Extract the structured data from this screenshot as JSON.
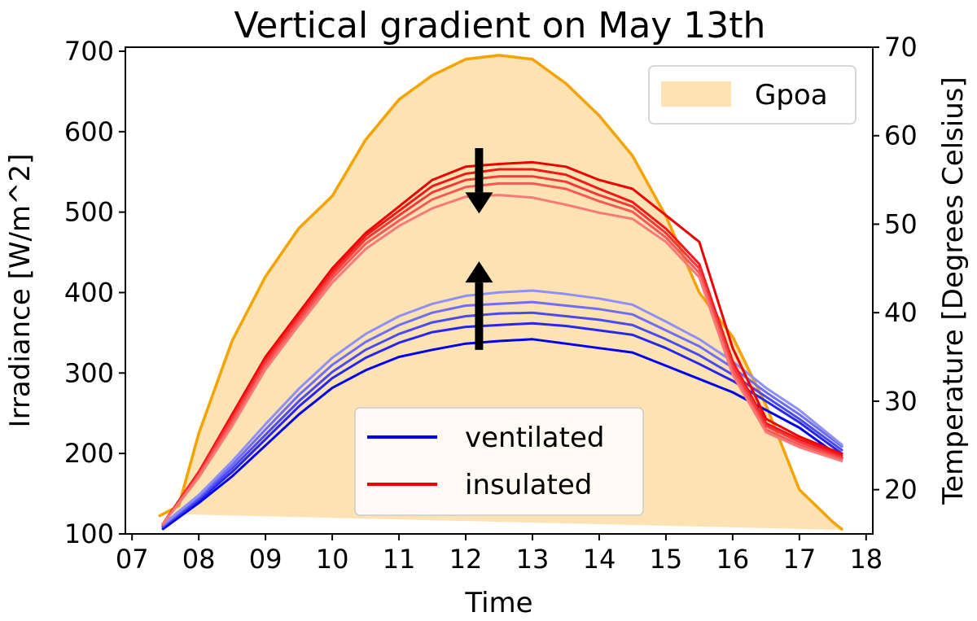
{
  "chart_data": {
    "type": "line",
    "title": "Vertical gradient on May 13th",
    "xlabel": "Time",
    "ylabel_left": "Irradiance [W/m^2]",
    "ylabel_right": "Temperature [Degrees Celsius]",
    "xlim": [
      6.9,
      18.1
    ],
    "ylim_left": [
      100,
      705
    ],
    "ylim_right": [
      15,
      70
    ],
    "x_ticks": [
      7,
      8,
      9,
      10,
      11,
      12,
      13,
      14,
      15,
      16,
      17,
      18
    ],
    "x_tick_labels": [
      "07",
      "08",
      "09",
      "10",
      "11",
      "12",
      "13",
      "14",
      "15",
      "16",
      "17",
      "18"
    ],
    "y_left_ticks": [
      100,
      200,
      300,
      400,
      500,
      600,
      700
    ],
    "y_right_ticks": [
      20,
      30,
      40,
      50,
      60,
      70
    ],
    "grid": false,
    "gpoa_fill": {
      "name": "Gpoa",
      "color": "#fde2b4",
      "x": [
        7.45,
        7.7,
        8.0,
        8.5,
        9.0,
        9.5,
        10.0,
        10.5,
        11.0,
        11.5,
        12.0,
        12.5,
        13.0,
        13.5,
        14.0,
        14.5,
        15.0,
        15.5,
        16.0,
        16.5,
        17.0,
        17.5,
        17.65
      ],
      "y": [
        125,
        135,
        225,
        340,
        420,
        480,
        520,
        590,
        640,
        670,
        690,
        695,
        690,
        660,
        620,
        570,
        495,
        400,
        345,
        260,
        155,
        115,
        105
      ],
      "baseline_y": [
        125,
        105
      ]
    },
    "gpoa_line": {
      "color": "#f5a300",
      "x": [
        7.4,
        7.7,
        8.0,
        8.5,
        9.0,
        9.5,
        10.0,
        10.5,
        11.0,
        11.5,
        12.0,
        12.5,
        13.0,
        13.5,
        14.0,
        14.5,
        15.0,
        15.5,
        16.0,
        16.5,
        17.0,
        17.5,
        17.65
      ],
      "y": [
        122,
        135,
        225,
        340,
        420,
        480,
        520,
        590,
        640,
        670,
        690,
        695,
        690,
        660,
        620,
        570,
        495,
        400,
        345,
        260,
        155,
        115,
        105
      ]
    },
    "temperature_x": [
      7.45,
      8.0,
      8.5,
      9.0,
      9.5,
      10.0,
      10.5,
      11.0,
      11.5,
      12.0,
      12.5,
      13.0,
      13.5,
      14.0,
      14.5,
      15.0,
      15.5,
      16.0,
      16.5,
      17.0,
      17.65
    ],
    "insulated_series": [
      {
        "color": "#ee0000",
        "y": [
          16,
          22,
          28.5,
          35,
          40,
          45,
          49,
          52,
          55,
          56.5,
          56.8,
          57,
          56.5,
          55,
          54,
          51,
          48,
          36,
          28,
          26,
          24
        ]
      },
      {
        "color": "#f21818",
        "y": [
          16,
          22,
          28.3,
          34.7,
          39.7,
          44.7,
          48.7,
          51.5,
          54.3,
          55.7,
          56.2,
          56.2,
          55.6,
          54.0,
          52.5,
          49.5,
          45.5,
          34.5,
          27.5,
          25.7,
          23.8
        ]
      },
      {
        "color": "#f53838",
        "y": [
          16,
          21.8,
          28,
          34.4,
          39.4,
          44.3,
          48.3,
          51.0,
          53.6,
          55.0,
          55.4,
          55.4,
          54.8,
          53.3,
          52.0,
          49.0,
          45.0,
          34.0,
          27.2,
          25.4,
          23.6
        ]
      },
      {
        "color": "#f75858",
        "y": [
          16,
          21.6,
          27.6,
          34.0,
          39.0,
          43.9,
          47.8,
          50.4,
          52.8,
          54.2,
          54.6,
          54.6,
          54.0,
          52.6,
          51.4,
          48.5,
          44.5,
          33.5,
          26.8,
          25.1,
          23.4
        ]
      },
      {
        "color": "#f97878",
        "y": [
          16,
          21.4,
          27.2,
          33.6,
          38.6,
          43.4,
          47.2,
          49.8,
          51.8,
          53.1,
          53.3,
          53.0,
          52.2,
          51.3,
          50.6,
          48.0,
          44.0,
          33.0,
          26.5,
          24.8,
          23.2
        ]
      }
    ],
    "ventilated_series": [
      {
        "color": "#0000ee",
        "y": [
          15.5,
          18.5,
          21.5,
          25.0,
          28.5,
          31.5,
          33.5,
          35.0,
          35.8,
          36.5,
          36.8,
          37.0,
          36.5,
          36.0,
          35.5,
          34.0,
          32.5,
          31.0,
          29.0,
          27.0,
          23.5
        ]
      },
      {
        "color": "#2626f0",
        "y": [
          15.7,
          18.8,
          22.0,
          25.7,
          29.4,
          32.6,
          34.9,
          36.6,
          37.8,
          38.4,
          38.6,
          38.8,
          38.5,
          38.0,
          37.5,
          36.0,
          34.2,
          32.3,
          30.0,
          27.6,
          24.0
        ]
      },
      {
        "color": "#4a4af2",
        "y": [
          15.8,
          19.0,
          22.4,
          26.2,
          30.0,
          33.3,
          35.8,
          37.6,
          38.9,
          39.6,
          39.9,
          40.0,
          39.6,
          39.2,
          38.6,
          37.0,
          35.2,
          33.0,
          30.5,
          28.0,
          24.4
        ]
      },
      {
        "color": "#6d6df5",
        "y": [
          15.9,
          19.2,
          22.8,
          26.8,
          30.7,
          34.1,
          36.7,
          38.6,
          40.0,
          40.8,
          41.0,
          41.2,
          40.8,
          40.4,
          39.8,
          38.0,
          36.2,
          33.8,
          31.0,
          28.5,
          24.8
        ]
      },
      {
        "color": "#8f8ff8",
        "y": [
          16.0,
          19.4,
          23.2,
          27.4,
          31.4,
          34.9,
          37.6,
          39.6,
          41.0,
          41.9,
          42.3,
          42.5,
          42.1,
          41.6,
          40.9,
          39.0,
          37.0,
          34.5,
          31.5,
          29.0,
          25.0
        ]
      }
    ],
    "arrows": [
      {
        "direction": "down",
        "x": 12.2,
        "from_y": 58.6,
        "to_y": 51.2
      },
      {
        "direction": "up",
        "x": 12.2,
        "from_y": 35.8,
        "to_y": 45.8
      }
    ],
    "legends": [
      {
        "placement": "top-right",
        "entries": [
          {
            "label": "Gpoa",
            "kind": "patch",
            "color": "#fde2b4"
          }
        ]
      },
      {
        "placement": "bottom-center",
        "entries": [
          {
            "label": "ventilated",
            "kind": "line",
            "color": "#0000ee"
          },
          {
            "label": "insulated",
            "kind": "line",
            "color": "#ee0000"
          }
        ]
      }
    ]
  }
}
